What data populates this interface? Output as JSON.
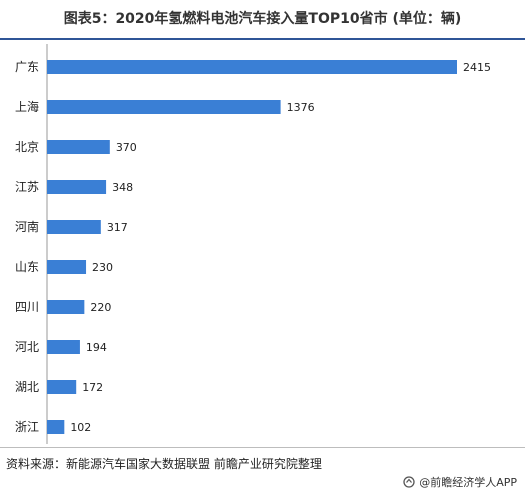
{
  "header": {
    "title": "图表5：2020年氢燃料电池汽车接入量TOP10省市 (单位：辆)"
  },
  "chart_data": {
    "type": "bar",
    "orientation": "horizontal",
    "categories": [
      "广东",
      "上海",
      "北京",
      "江苏",
      "河南",
      "山东",
      "四川",
      "河北",
      "湖北",
      "浙江"
    ],
    "values": [
      2415,
      1376,
      370,
      348,
      317,
      230,
      220,
      194,
      172,
      102
    ],
    "xlim": [
      0,
      2415
    ],
    "grid": false,
    "legend": "none",
    "bar_color": "#3a7fd5",
    "axis_color": "#999999"
  },
  "footer": {
    "source": "资料来源：新能源汽车国家大数据联盟 前瞻产业研究院整理",
    "brand": "@前瞻经济学人APP"
  }
}
